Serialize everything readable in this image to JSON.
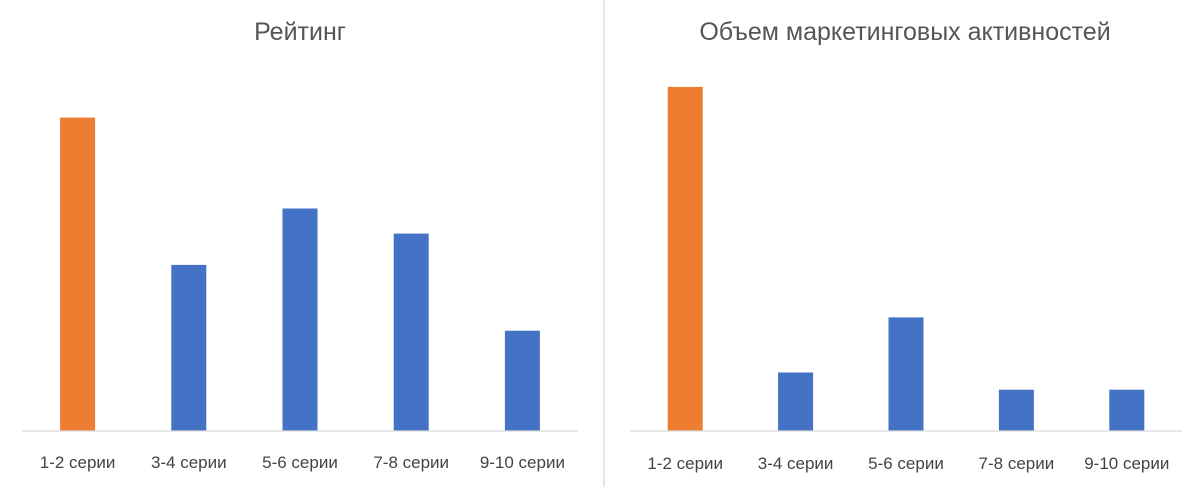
{
  "colors": {
    "highlight": "#ED7D31",
    "bar": "#4472C4",
    "axis": "#D9D9D9",
    "text": "#444444"
  },
  "chart_data": [
    {
      "type": "bar",
      "title": "Рейтинг",
      "xlabel": "",
      "ylabel": "",
      "categories": [
        "1-2 серии",
        "3-4 серии",
        "5-6 серии",
        "7-8 серии",
        "9-10 серии"
      ],
      "values": [
        100,
        53,
        71,
        63,
        32
      ],
      "highlight_index": 0,
      "ylim": [
        0,
        112
      ],
      "grid": false,
      "legend": "none"
    },
    {
      "type": "bar",
      "title": "Объем маркетинговых активностей",
      "xlabel": "",
      "ylabel": "",
      "categories": [
        "1-2 серии",
        "3-4 серии",
        "5-6 серии",
        "7-8 серии",
        "9-10 серии"
      ],
      "values": [
        100,
        17,
        33,
        12,
        12
      ],
      "highlight_index": 0,
      "ylim": [
        0,
        102
      ],
      "grid": false,
      "legend": "none"
    }
  ]
}
